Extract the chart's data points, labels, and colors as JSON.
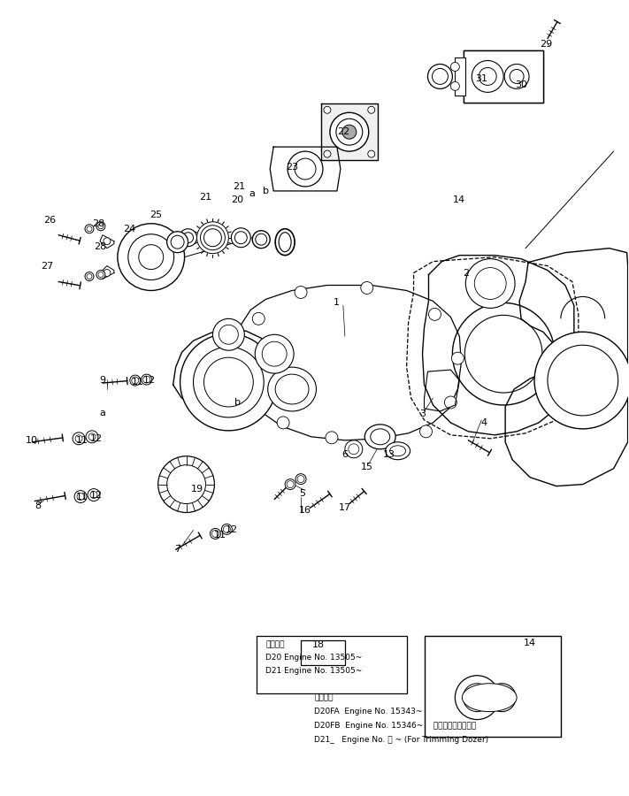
{
  "bg_color": "#ffffff",
  "fig_width": 7.11,
  "fig_height": 9.0,
  "dpi": 100,
  "footnote1_header": "適用号機",
  "footnote1_l1": "D20 Engine No. 13505~",
  "footnote1_l2": "D21 Engine No. 13505~",
  "footnote2_header": "適用号機",
  "footnote2_l1": "D20FA  Engine No. 15343~",
  "footnote2_l2": "D20FB  Engine No. 15346~    トリミングドーザ用",
  "footnote2_l3": "D21_   Engine No. ・ ~ (For Trimming Dozer)"
}
